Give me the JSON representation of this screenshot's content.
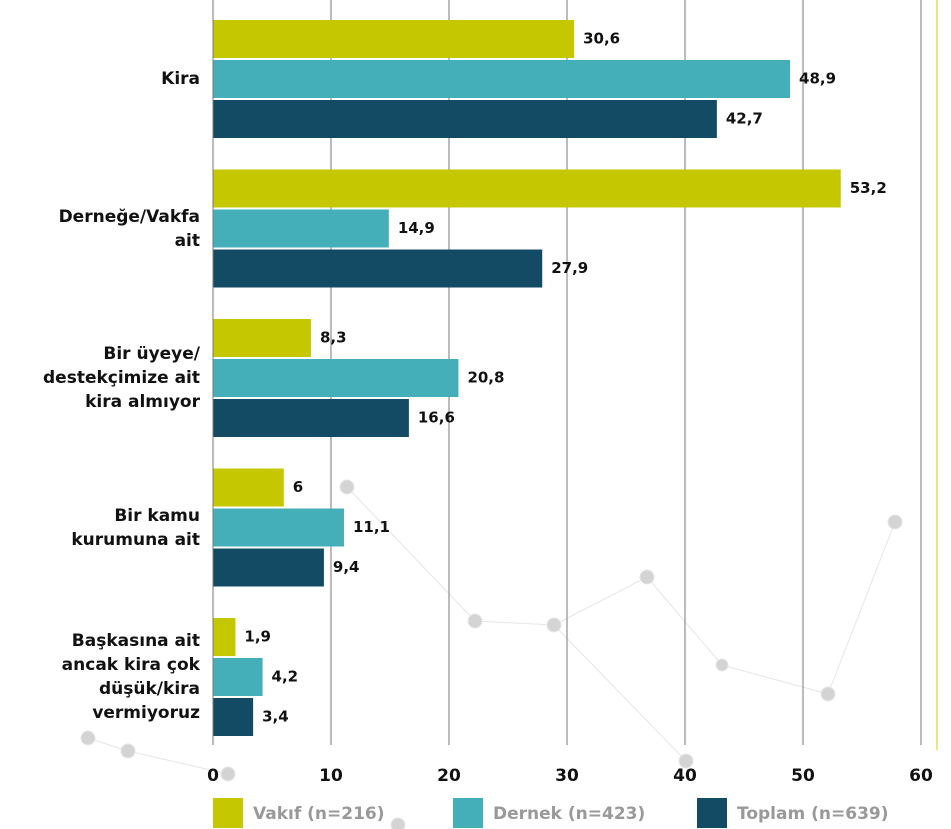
{
  "chart_data": {
    "type": "barh",
    "categories": [
      "Kira",
      "Derneğe/Vakfa\nait",
      "Bir üyeye/\ndestekçimize ait\nkira almıyor",
      "Bir kamu\nkurumuna ait",
      "Başkasına ait\nancak kira çok\ndüşük/kira\nvermiyoruz"
    ],
    "series": [
      {
        "name": "Vakıf (n=216)",
        "color": "#c5c800",
        "values": [
          30.6,
          53.2,
          8.3,
          6,
          1.9
        ],
        "value_labels": [
          "30,6",
          "53,2",
          "8,3",
          "6",
          "1,9"
        ]
      },
      {
        "name": "Dernek (n=423)",
        "color": "#45afb9",
        "values": [
          48.9,
          14.9,
          20.8,
          11.1,
          4.2
        ],
        "value_labels": [
          "48,9",
          "14,9",
          "20,8",
          "11,1",
          "4,2"
        ]
      },
      {
        "name": "Toplam (n=639)",
        "color": "#134a64",
        "values": [
          42.7,
          27.9,
          16.6,
          9.4,
          3.4
        ],
        "value_labels": [
          "42,7",
          "27,9",
          "16,6",
          "9,4",
          "3,4"
        ]
      }
    ],
    "xlim": [
      0,
      60
    ],
    "xticks": [
      0,
      10,
      20,
      30,
      40,
      50,
      60
    ],
    "grid": true,
    "legend": "bottom"
  }
}
